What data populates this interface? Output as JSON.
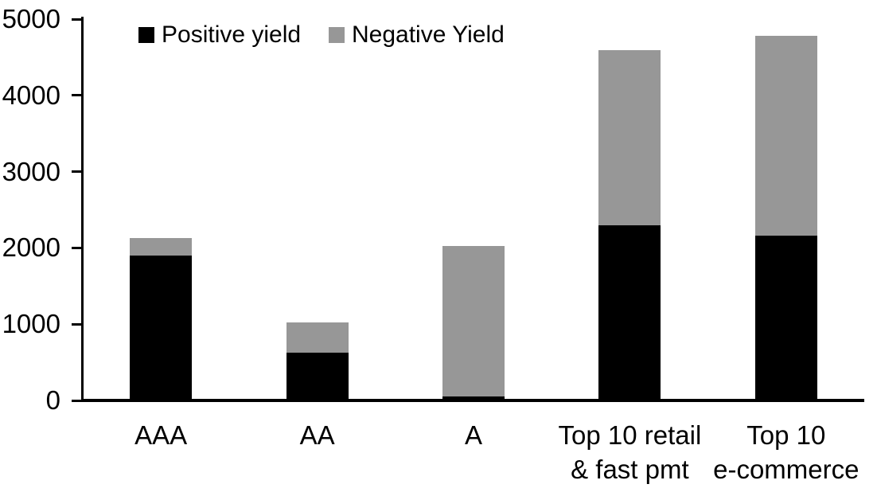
{
  "chart_data": {
    "type": "bar",
    "stacked": true,
    "title": "",
    "categories": [
      {
        "lines": [
          "AAA"
        ]
      },
      {
        "lines": [
          "AA"
        ]
      },
      {
        "lines": [
          "A"
        ]
      },
      {
        "lines": [
          "Top 10 retail",
          "& fast pmt"
        ]
      },
      {
        "lines": [
          "Top 10",
          "e-commerce"
        ]
      }
    ],
    "series": [
      {
        "name": "Positive yield",
        "color": "#000000",
        "values": [
          1900,
          630,
          50,
          2300,
          2160
        ]
      },
      {
        "name": "Negative Yield",
        "color": "#979797",
        "values": [
          230,
          390,
          1980,
          2290,
          2620
        ]
      }
    ],
    "totals": [
      2130,
      1020,
      2030,
      4590,
      4780
    ],
    "xlabel": "",
    "ylabel": "",
    "ylim": [
      0,
      5000
    ],
    "yticks": [
      0,
      1000,
      2000,
      3000,
      4000,
      5000
    ],
    "legend_position": "top",
    "grid": false,
    "colors": {
      "axis": "#000000",
      "background": "#ffffff"
    }
  }
}
